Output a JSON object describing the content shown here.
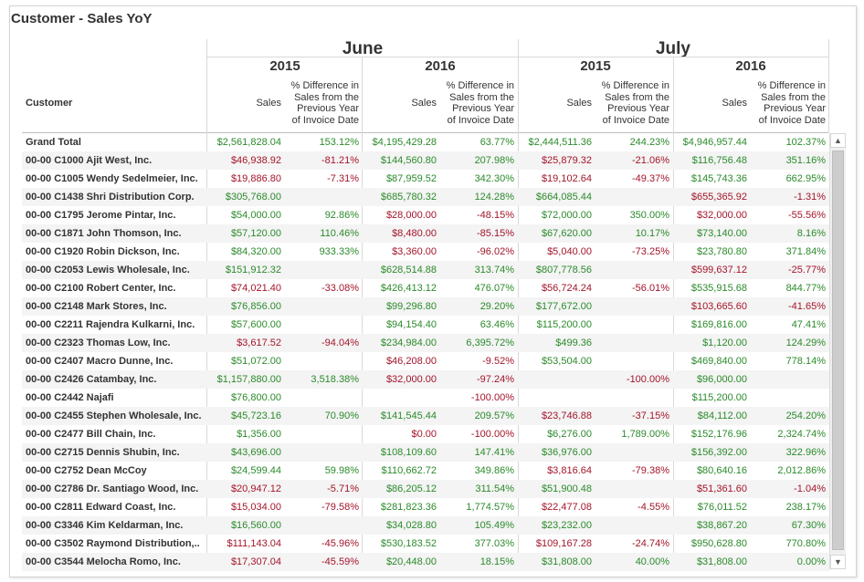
{
  "title": "Customer - Sales YoY",
  "header": {
    "row_header": "Customer",
    "months": [
      {
        "label": "June",
        "years": [
          "2015",
          "2016"
        ]
      },
      {
        "label": "July",
        "years": [
          "2015",
          "2016"
        ]
      }
    ],
    "sales_label": "Sales",
    "pct_label_lines": [
      "% Difference in",
      "Sales from the",
      "Previous Year",
      "of Invoice Date"
    ]
  },
  "rows": [
    {
      "name": "Grand Total",
      "v": [
        "$2,561,828.04",
        "153.12%",
        "$4,195,429.28",
        "63.77%",
        "$2,444,511.36",
        "244.23%",
        "$4,946,957.44",
        "102.37%"
      ],
      "s": [
        "pos",
        "pos",
        "pos",
        "pos",
        "pos",
        "pos",
        "pos",
        "pos"
      ]
    },
    {
      "name": "00-00  C1000  Ajit West, Inc.",
      "v": [
        "$46,938.92",
        "-81.21%",
        "$144,560.80",
        "207.98%",
        "$25,879.32",
        "-21.06%",
        "$116,756.48",
        "351.16%"
      ],
      "s": [
        "neg",
        "neg",
        "pos",
        "pos",
        "neg",
        "neg",
        "pos",
        "pos"
      ]
    },
    {
      "name": "00-00  C1005  Wendy Sedelmeier, Inc.",
      "v": [
        "$19,886.80",
        "-7.31%",
        "$87,959.52",
        "342.30%",
        "$19,102.64",
        "-49.37%",
        "$145,743.36",
        "662.95%"
      ],
      "s": [
        "neg",
        "neg",
        "pos",
        "pos",
        "neg",
        "neg",
        "pos",
        "pos"
      ]
    },
    {
      "name": "00-00  C1438  Shri Distribution Corp.",
      "v": [
        "$305,768.00",
        "",
        "$685,780.32",
        "124.28%",
        "$664,085.44",
        "",
        "$655,365.92",
        "-1.31%"
      ],
      "s": [
        "pos",
        "",
        "pos",
        "pos",
        "pos",
        "",
        "neg",
        "neg"
      ]
    },
    {
      "name": "00-00  C1795  Jerome Pintar, Inc.",
      "v": [
        "$54,000.00",
        "92.86%",
        "$28,000.00",
        "-48.15%",
        "$72,000.00",
        "350.00%",
        "$32,000.00",
        "-55.56%"
      ],
      "s": [
        "pos",
        "pos",
        "neg",
        "neg",
        "pos",
        "pos",
        "neg",
        "neg"
      ]
    },
    {
      "name": "00-00  C1871  John Thomson, Inc.",
      "v": [
        "$57,120.00",
        "110.46%",
        "$8,480.00",
        "-85.15%",
        "$67,620.00",
        "10.17%",
        "$73,140.00",
        "8.16%"
      ],
      "s": [
        "pos",
        "pos",
        "neg",
        "neg",
        "pos",
        "pos",
        "pos",
        "pos"
      ]
    },
    {
      "name": "00-00  C1920  Robin Dickson, Inc.",
      "v": [
        "$84,320.00",
        "933.33%",
        "$3,360.00",
        "-96.02%",
        "$5,040.00",
        "-73.25%",
        "$23,780.80",
        "371.84%"
      ],
      "s": [
        "pos",
        "pos",
        "neg",
        "neg",
        "neg",
        "neg",
        "pos",
        "pos"
      ]
    },
    {
      "name": "00-00  C2053  Lewis Wholesale, Inc.",
      "v": [
        "$151,912.32",
        "",
        "$628,514.88",
        "313.74%",
        "$807,778.56",
        "",
        "$599,637.12",
        "-25.77%"
      ],
      "s": [
        "pos",
        "",
        "pos",
        "pos",
        "pos",
        "",
        "neg",
        "neg"
      ]
    },
    {
      "name": "00-00  C2100  Robert Center, Inc.",
      "v": [
        "$74,021.40",
        "-33.08%",
        "$426,413.12",
        "476.07%",
        "$56,724.24",
        "-56.01%",
        "$535,915.68",
        "844.77%"
      ],
      "s": [
        "neg",
        "neg",
        "pos",
        "pos",
        "neg",
        "neg",
        "pos",
        "pos"
      ]
    },
    {
      "name": "00-00  C2148  Mark Stores, Inc.",
      "v": [
        "$76,856.00",
        "",
        "$99,296.80",
        "29.20%",
        "$177,672.00",
        "",
        "$103,665.60",
        "-41.65%"
      ],
      "s": [
        "pos",
        "",
        "pos",
        "pos",
        "pos",
        "",
        "neg",
        "neg"
      ]
    },
    {
      "name": "00-00  C2211  Rajendra Kulkarni, Inc.",
      "v": [
        "$57,600.00",
        "",
        "$94,154.40",
        "63.46%",
        "$115,200.00",
        "",
        "$169,816.00",
        "47.41%"
      ],
      "s": [
        "pos",
        "",
        "pos",
        "pos",
        "pos",
        "",
        "pos",
        "pos"
      ]
    },
    {
      "name": "00-00  C2323  Thomas Low, Inc.",
      "v": [
        "$3,617.52",
        "-94.04%",
        "$234,984.00",
        "6,395.72%",
        "$499.36",
        "",
        "$1,120.00",
        "124.29%"
      ],
      "s": [
        "neg",
        "neg",
        "pos",
        "pos",
        "pos",
        "",
        "pos",
        "pos"
      ]
    },
    {
      "name": "00-00  C2407  Macro Dunne, Inc.",
      "v": [
        "$51,072.00",
        "",
        "$46,208.00",
        "-9.52%",
        "$53,504.00",
        "",
        "$469,840.00",
        "778.14%"
      ],
      "s": [
        "pos",
        "",
        "neg",
        "neg",
        "pos",
        "",
        "pos",
        "pos"
      ]
    },
    {
      "name": "00-00  C2426  Catambay, Inc.",
      "v": [
        "$1,157,880.00",
        "3,518.38%",
        "$32,000.00",
        "-97.24%",
        "",
        "-100.00%",
        "$96,000.00",
        ""
      ],
      "s": [
        "pos",
        "pos",
        "neg",
        "neg",
        "",
        "neg",
        "pos",
        ""
      ]
    },
    {
      "name": "00-00  C2442  Najafi",
      "v": [
        "$76,800.00",
        "",
        "",
        "-100.00%",
        "",
        "",
        "$115,200.00",
        ""
      ],
      "s": [
        "pos",
        "",
        "",
        "neg",
        "",
        "",
        "pos",
        ""
      ]
    },
    {
      "name": "00-00  C2455  Stephen Wholesale, Inc.",
      "v": [
        "$45,723.16",
        "70.90%",
        "$141,545.44",
        "209.57%",
        "$23,746.88",
        "-37.15%",
        "$84,112.00",
        "254.20%"
      ],
      "s": [
        "pos",
        "pos",
        "pos",
        "pos",
        "neg",
        "neg",
        "pos",
        "pos"
      ]
    },
    {
      "name": "00-00  C2477  Bill Chain, Inc.",
      "v": [
        "$1,356.00",
        "",
        "$0.00",
        "-100.00%",
        "$6,276.00",
        "1,789.00%",
        "$152,176.96",
        "2,324.74%"
      ],
      "s": [
        "pos",
        "",
        "neg",
        "neg",
        "pos",
        "pos",
        "pos",
        "pos"
      ]
    },
    {
      "name": "00-00  C2715  Dennis Shubin, Inc.",
      "v": [
        "$43,696.00",
        "",
        "$108,109.60",
        "147.41%",
        "$36,976.00",
        "",
        "$156,392.00",
        "322.96%"
      ],
      "s": [
        "pos",
        "",
        "pos",
        "pos",
        "pos",
        "",
        "pos",
        "pos"
      ]
    },
    {
      "name": "00-00  C2752  Dean McCoy",
      "v": [
        "$24,599.44",
        "59.98%",
        "$110,662.72",
        "349.86%",
        "$3,816.64",
        "-79.38%",
        "$80,640.16",
        "2,012.86%"
      ],
      "s": [
        "pos",
        "pos",
        "pos",
        "pos",
        "neg",
        "neg",
        "pos",
        "pos"
      ]
    },
    {
      "name": "00-00  C2786  Dr. Santiago Wood, Inc.",
      "v": [
        "$20,947.12",
        "-5.71%",
        "$86,205.12",
        "311.54%",
        "$51,900.48",
        "",
        "$51,361.60",
        "-1.04%"
      ],
      "s": [
        "neg",
        "neg",
        "pos",
        "pos",
        "pos",
        "",
        "neg",
        "neg"
      ]
    },
    {
      "name": "00-00  C2811  Edward Coast, Inc.",
      "v": [
        "$15,034.00",
        "-79.58%",
        "$281,823.36",
        "1,774.57%",
        "$22,477.08",
        "-4.55%",
        "$76,011.52",
        "238.17%"
      ],
      "s": [
        "neg",
        "neg",
        "pos",
        "pos",
        "neg",
        "neg",
        "pos",
        "pos"
      ]
    },
    {
      "name": "00-00  C3346  Kim Keldarman, Inc.",
      "v": [
        "$16,560.00",
        "",
        "$34,028.80",
        "105.49%",
        "$23,232.00",
        "",
        "$38,867.20",
        "67.30%"
      ],
      "s": [
        "pos",
        "",
        "pos",
        "pos",
        "pos",
        "",
        "pos",
        "pos"
      ]
    },
    {
      "name": "00-00  C3502  Raymond Distribution,..",
      "v": [
        "$111,143.04",
        "-45.96%",
        "$530,183.52",
        "377.03%",
        "$109,167.28",
        "-24.74%",
        "$950,628.80",
        "770.80%"
      ],
      "s": [
        "neg",
        "neg",
        "pos",
        "pos",
        "neg",
        "neg",
        "pos",
        "pos"
      ]
    },
    {
      "name": "00-00  C3544  Melocha Romo, Inc.",
      "v": [
        "$17,307.04",
        "-45.59%",
        "$20,448.00",
        "18.15%",
        "$31,808.00",
        "40.00%",
        "$31,808.00",
        "0.00%"
      ],
      "s": [
        "neg",
        "neg",
        "pos",
        "pos",
        "pos",
        "pos",
        "pos",
        "pos"
      ]
    }
  ],
  "scrollbar": {
    "up_glyph": "▲",
    "down_glyph": "▼"
  }
}
